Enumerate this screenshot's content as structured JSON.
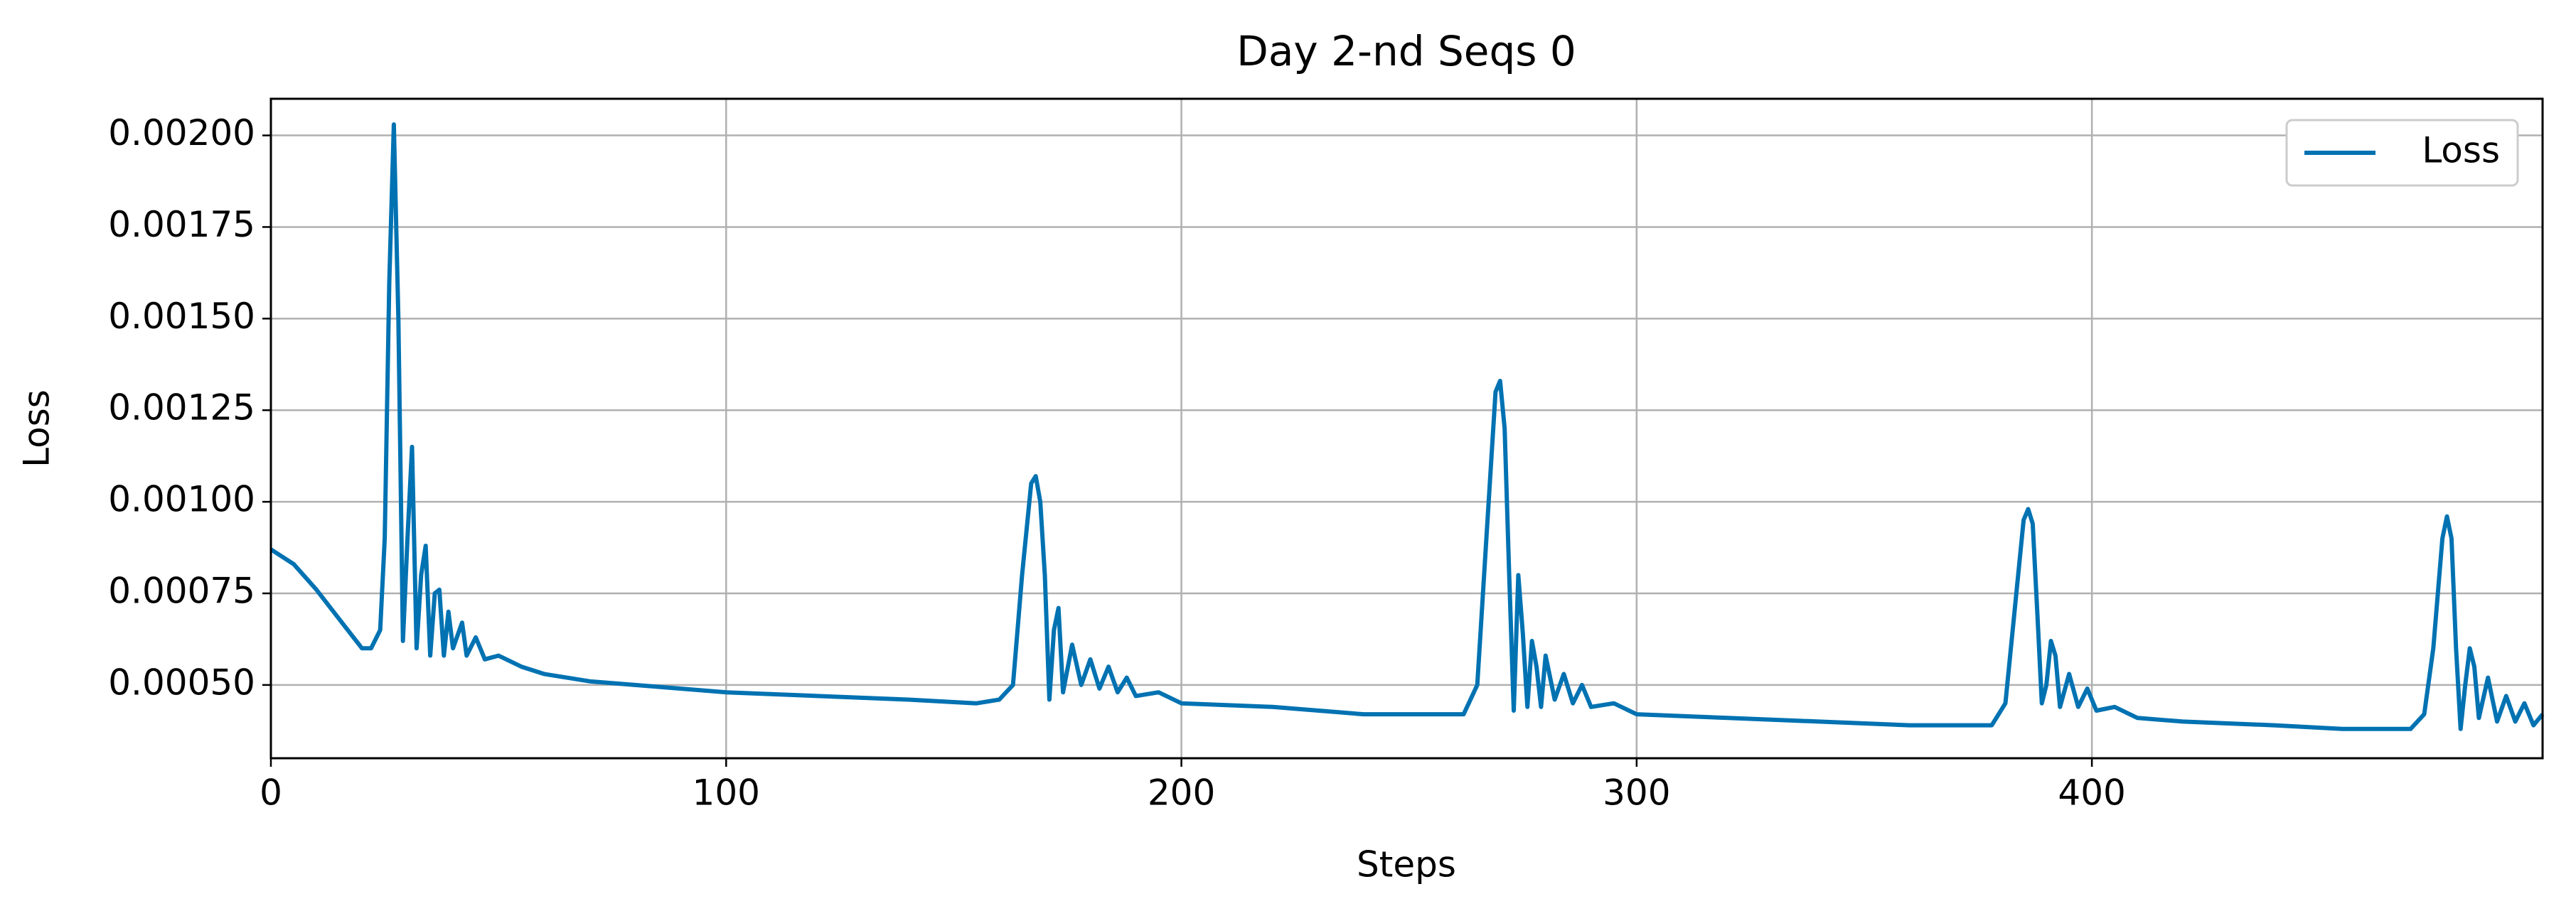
{
  "chart_data": {
    "type": "line",
    "title": "Day 2-nd Seqs 0",
    "xlabel": "Steps",
    "ylabel": "Loss",
    "x": [
      0,
      5,
      10,
      15,
      20,
      22,
      24,
      25,
      26,
      27,
      28,
      29,
      30,
      31,
      32,
      33,
      34,
      35,
      36,
      37,
      38,
      39,
      40,
      42,
      43,
      45,
      47,
      50,
      55,
      60,
      70,
      80,
      100,
      120,
      140,
      155,
      160,
      163,
      165,
      167,
      168,
      169,
      170,
      171,
      172,
      173,
      174,
      176,
      178,
      180,
      182,
      184,
      186,
      188,
      190,
      195,
      200,
      220,
      240,
      262,
      265,
      267,
      269,
      270,
      271,
      272,
      273,
      274,
      275,
      276,
      277,
      278,
      279,
      280,
      282,
      284,
      286,
      288,
      290,
      295,
      300,
      320,
      340,
      360,
      378,
      381,
      383,
      385,
      386,
      387,
      388,
      389,
      390,
      391,
      392,
      393,
      395,
      397,
      399,
      401,
      405,
      410,
      420,
      440,
      455,
      470,
      473,
      475,
      477,
      478,
      479,
      480,
      481,
      482,
      483,
      484,
      485,
      487,
      489,
      491,
      493,
      495,
      497,
      499
    ],
    "series": [
      {
        "name": "Loss",
        "color": "#0072b2",
        "values": [
          0.00087,
          0.00083,
          0.00076,
          0.00068,
          0.0006,
          0.0006,
          0.00065,
          0.0009,
          0.0016,
          0.00203,
          0.0015,
          0.00062,
          0.0009,
          0.00115,
          0.0006,
          0.0008,
          0.00088,
          0.00058,
          0.00075,
          0.00076,
          0.00058,
          0.0007,
          0.0006,
          0.00067,
          0.00058,
          0.00063,
          0.00057,
          0.00058,
          0.00055,
          0.00053,
          0.00051,
          0.0005,
          0.00048,
          0.00047,
          0.00046,
          0.00045,
          0.00046,
          0.0005,
          0.0008,
          0.00105,
          0.00107,
          0.001,
          0.0008,
          0.00046,
          0.00065,
          0.00071,
          0.00048,
          0.00061,
          0.0005,
          0.00057,
          0.00049,
          0.00055,
          0.00048,
          0.00052,
          0.00047,
          0.00048,
          0.00045,
          0.00044,
          0.00042,
          0.00042,
          0.0005,
          0.0009,
          0.0013,
          0.00133,
          0.0012,
          0.0008,
          0.00043,
          0.0008,
          0.00064,
          0.00044,
          0.00062,
          0.00055,
          0.00044,
          0.00058,
          0.00046,
          0.00053,
          0.00045,
          0.0005,
          0.00044,
          0.00045,
          0.00042,
          0.00041,
          0.0004,
          0.00039,
          0.00039,
          0.00045,
          0.0007,
          0.00095,
          0.00098,
          0.00094,
          0.0007,
          0.00045,
          0.0005,
          0.00062,
          0.00058,
          0.00044,
          0.00053,
          0.00044,
          0.00049,
          0.00043,
          0.00044,
          0.00041,
          0.0004,
          0.00039,
          0.00038,
          0.00038,
          0.00042,
          0.0006,
          0.0009,
          0.00096,
          0.0009,
          0.0006,
          0.00038,
          0.0005,
          0.0006,
          0.00055,
          0.00041,
          0.00052,
          0.0004,
          0.00047,
          0.0004,
          0.00045,
          0.00039,
          0.00042
        ]
      }
    ],
    "xlim": [
      0,
      499
    ],
    "xticks": [
      0,
      100,
      200,
      300,
      400
    ],
    "ylim": [
      0.0003,
      0.0021
    ],
    "yticks": [
      {
        "value": 0.0005,
        "label": "0.00050"
      },
      {
        "value": 0.00075,
        "label": "0.00075"
      },
      {
        "value": 0.001,
        "label": "0.00100"
      },
      {
        "value": 0.00125,
        "label": "0.00125"
      },
      {
        "value": 0.0015,
        "label": "0.00150"
      },
      {
        "value": 0.00175,
        "label": "0.00175"
      },
      {
        "value": 0.002,
        "label": "0.00200"
      }
    ],
    "grid": true,
    "legend": "upper right"
  }
}
